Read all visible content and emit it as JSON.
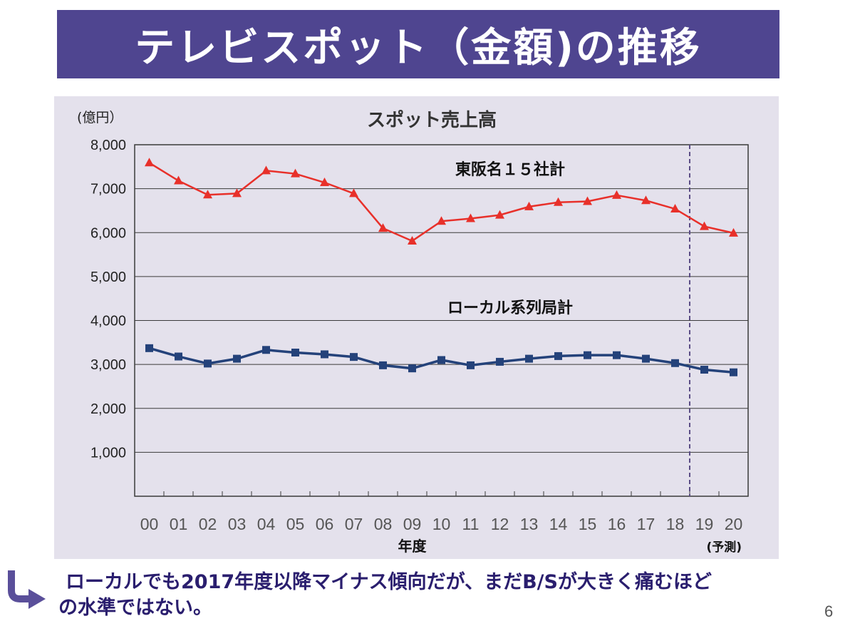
{
  "slide": {
    "title": "テレビスポット（金額)の推移",
    "footer_line1": "ローカルでも2017年度以降マイナス傾向だが、まだB/Sが大きく痛むほど",
    "footer_line2": "の水準ではない。",
    "page_number": "6",
    "arrow_icon": "curved-arrow-right-icon"
  },
  "colors": {
    "title_bg": "#4f4590",
    "chart_bg": "#e4e1ec",
    "series_tohan": "#e8302a",
    "series_local": "#24427a",
    "footer_text": "#2a1e6e"
  },
  "chart_data": {
    "type": "line",
    "title": "スポット売上高",
    "unit_label": "(億円）",
    "xlabel": "年度",
    "forecast_label": "(予測)",
    "categories": [
      "00",
      "01",
      "02",
      "03",
      "04",
      "05",
      "06",
      "07",
      "08",
      "09",
      "10",
      "11",
      "12",
      "13",
      "14",
      "15",
      "16",
      "17",
      "18",
      "19",
      "20"
    ],
    "ylim": [
      0,
      8000
    ],
    "yticks": [
      0,
      1000,
      2000,
      3000,
      4000,
      5000,
      6000,
      7000,
      8000
    ],
    "ytick_labels": [
      "1,000",
      "2,000",
      "3,000",
      "4,000",
      "5,000",
      "6,000",
      "7,000",
      "8,000"
    ],
    "grid": true,
    "forecast_start_category": "19",
    "series": [
      {
        "name": "東阪名１５社計",
        "marker": "triangle",
        "values": [
          7590,
          7180,
          6860,
          6890,
          7410,
          7340,
          7140,
          6890,
          6100,
          5810,
          6260,
          6320,
          6400,
          6590,
          6690,
          6710,
          6850,
          6730,
          6540,
          6140,
          5990
        ]
      },
      {
        "name": "ローカル系列局計",
        "marker": "square",
        "values": [
          3370,
          3180,
          3020,
          3130,
          3330,
          3270,
          3230,
          3170,
          2980,
          2910,
          3100,
          2980,
          3060,
          3130,
          3190,
          3210,
          3210,
          3130,
          3030,
          2880,
          2820
        ]
      }
    ]
  }
}
